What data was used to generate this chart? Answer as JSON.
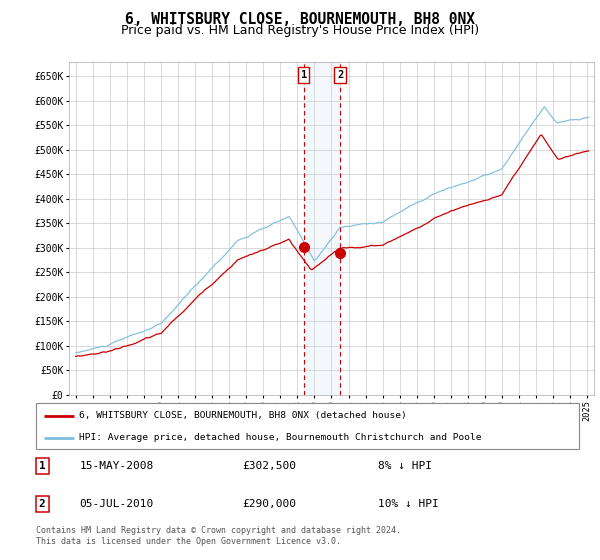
{
  "title": "6, WHITSBURY CLOSE, BOURNEMOUTH, BH8 0NX",
  "subtitle": "Price paid vs. HM Land Registry's House Price Index (HPI)",
  "title_fontsize": 10.5,
  "subtitle_fontsize": 9,
  "hpi_color": "#7fbfdf",
  "price_color": "#cc0000",
  "background_color": "#ffffff",
  "grid_color": "#cccccc",
  "yticks": [
    0,
    50000,
    100000,
    150000,
    200000,
    250000,
    300000,
    350000,
    400000,
    450000,
    500000,
    550000,
    600000,
    650000
  ],
  "ytick_labels": [
    "£0",
    "£50K",
    "£100K",
    "£150K",
    "£200K",
    "£250K",
    "£300K",
    "£350K",
    "£400K",
    "£450K",
    "£500K",
    "£550K",
    "£600K",
    "£650K"
  ],
  "sale1_date_label": "15-MAY-2008",
  "sale1_price": 302500,
  "sale1_hpi_pct": "8% ↓ HPI",
  "sale2_date_label": "05-JUL-2010",
  "sale2_price": 290000,
  "sale2_hpi_pct": "10% ↓ HPI",
  "sale1_x": 2008.37,
  "sale2_x": 2010.5,
  "legend_label_price": "6, WHITSBURY CLOSE, BOURNEMOUTH, BH8 0NX (detached house)",
  "legend_label_hpi": "HPI: Average price, detached house, Bournemouth Christchurch and Poole",
  "footer": "Contains HM Land Registry data © Crown copyright and database right 2024.\nThis data is licensed under the Open Government Licence v3.0.",
  "xlim_left": 1994.6,
  "xlim_right": 2025.4,
  "ylim_top": 680000
}
